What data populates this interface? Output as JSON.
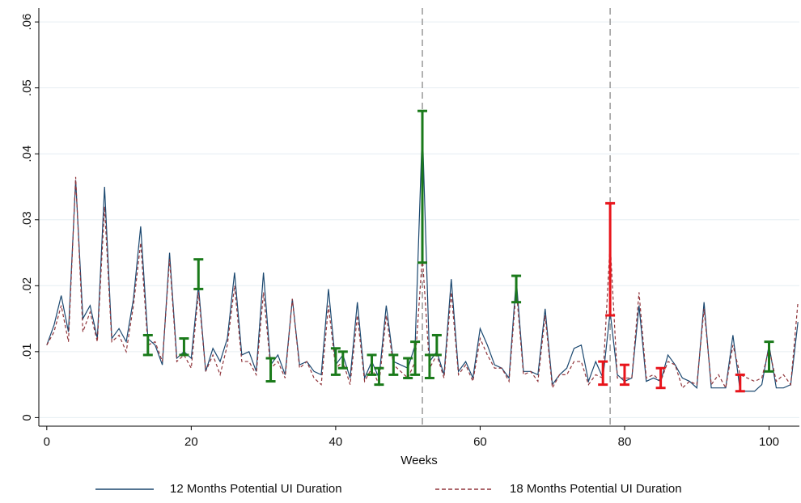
{
  "chart_data": {
    "type": "line",
    "xlabel": "Weeks",
    "x": [
      0,
      1,
      2,
      3,
      4,
      5,
      6,
      7,
      8,
      9,
      10,
      11,
      12,
      13,
      14,
      15,
      16,
      17,
      18,
      19,
      20,
      21,
      22,
      23,
      24,
      25,
      26,
      27,
      28,
      29,
      30,
      31,
      32,
      33,
      34,
      35,
      36,
      37,
      38,
      39,
      40,
      41,
      42,
      43,
      44,
      45,
      46,
      47,
      48,
      49,
      50,
      51,
      52,
      53,
      54,
      55,
      56,
      57,
      58,
      59,
      60,
      61,
      62,
      63,
      64,
      65,
      66,
      67,
      68,
      69,
      70,
      71,
      72,
      73,
      74,
      75,
      76,
      77,
      78,
      79,
      80,
      81,
      82,
      83,
      84,
      85,
      86,
      87,
      88,
      89,
      90,
      91,
      92,
      93,
      94,
      95,
      96,
      97,
      98,
      99,
      100,
      101,
      102,
      103,
      104
    ],
    "series": [
      {
        "name": "12 Months Potential UI Duration",
        "color": "#1a476f",
        "dash": false,
        "values": [
          0.011,
          0.014,
          0.0185,
          0.013,
          0.036,
          0.015,
          0.017,
          0.012,
          0.035,
          0.012,
          0.0135,
          0.0115,
          0.018,
          0.029,
          0.012,
          0.011,
          0.008,
          0.025,
          0.009,
          0.01,
          0.009,
          0.02,
          0.007,
          0.0105,
          0.0085,
          0.012,
          0.022,
          0.0095,
          0.01,
          0.007,
          0.022,
          0.008,
          0.0095,
          0.0065,
          0.018,
          0.008,
          0.0085,
          0.007,
          0.0065,
          0.0195,
          0.008,
          0.0095,
          0.006,
          0.0175,
          0.006,
          0.0085,
          0.006,
          0.017,
          0.0085,
          0.008,
          0.0075,
          0.011,
          0.044,
          0.0085,
          0.01,
          0.0065,
          0.021,
          0.007,
          0.0085,
          0.006,
          0.0135,
          0.011,
          0.008,
          0.0075,
          0.006,
          0.021,
          0.007,
          0.007,
          0.0065,
          0.0165,
          0.005,
          0.0065,
          0.0075,
          0.0105,
          0.011,
          0.0055,
          0.0085,
          0.006,
          0.016,
          0.0065,
          0.0055,
          0.006,
          0.017,
          0.0055,
          0.006,
          0.0055,
          0.0095,
          0.008,
          0.006,
          0.0055,
          0.0045,
          0.0175,
          0.0045,
          0.0045,
          0.0045,
          0.0125,
          0.004,
          0.004,
          0.004,
          0.005,
          0.011,
          0.0045,
          0.0045,
          0.005,
          0.0145
        ]
      },
      {
        "name": "18 Months Potential UI Duration",
        "color": "#90353b",
        "dash": true,
        "values": [
          0.011,
          0.013,
          0.017,
          0.0115,
          0.0365,
          0.013,
          0.016,
          0.0115,
          0.032,
          0.0115,
          0.0125,
          0.01,
          0.017,
          0.0265,
          0.011,
          0.0115,
          0.0085,
          0.024,
          0.0085,
          0.0095,
          0.0075,
          0.019,
          0.007,
          0.0095,
          0.0065,
          0.011,
          0.02,
          0.0085,
          0.0085,
          0.0065,
          0.019,
          0.0075,
          0.0085,
          0.006,
          0.018,
          0.0075,
          0.0085,
          0.006,
          0.005,
          0.017,
          0.0075,
          0.0085,
          0.005,
          0.0155,
          0.0055,
          0.0075,
          0.005,
          0.0155,
          0.008,
          0.007,
          0.006,
          0.0085,
          0.0245,
          0.0075,
          0.0095,
          0.006,
          0.019,
          0.0065,
          0.008,
          0.0055,
          0.012,
          0.0095,
          0.0075,
          0.0075,
          0.0055,
          0.0195,
          0.0065,
          0.007,
          0.0055,
          0.0155,
          0.0045,
          0.0065,
          0.0065,
          0.0085,
          0.0085,
          0.005,
          0.0065,
          0.006,
          0.0265,
          0.006,
          0.006,
          0.006,
          0.019,
          0.006,
          0.0065,
          0.0055,
          0.0085,
          0.008,
          0.0045,
          0.0055,
          0.005,
          0.0165,
          0.005,
          0.0065,
          0.0045,
          0.011,
          0.0065,
          0.006,
          0.0055,
          0.006,
          0.0105,
          0.0055,
          0.0065,
          0.005,
          0.0175
        ]
      }
    ],
    "error_bars": [
      {
        "color": "#1a7a1a",
        "x": [
          14,
          19,
          21,
          31,
          40,
          41,
          45,
          46,
          48,
          50,
          51,
          52,
          53,
          54,
          65,
          100
        ],
        "low": [
          0.0095,
          0.0095,
          0.0195,
          0.0055,
          0.0065,
          0.0075,
          0.0065,
          0.005,
          0.0065,
          0.006,
          0.0065,
          0.0235,
          0.006,
          0.0095,
          0.0175,
          0.007
        ],
        "high": [
          0.0125,
          0.012,
          0.024,
          0.009,
          0.0105,
          0.01,
          0.0095,
          0.0075,
          0.0095,
          0.009,
          0.0115,
          0.0465,
          0.0095,
          0.0125,
          0.0215,
          0.0115
        ]
      },
      {
        "color": "#e8141b",
        "x": [
          77,
          78,
          80,
          85,
          96
        ],
        "low": [
          0.005,
          0.0155,
          0.005,
          0.0045,
          0.004
        ],
        "high": [
          0.0085,
          0.0325,
          0.008,
          0.0075,
          0.0065
        ]
      }
    ],
    "vlines": [
      52,
      78
    ],
    "xlim": [
      -1.1,
      104.2
    ],
    "xticks": [
      0,
      20,
      40,
      60,
      80,
      100
    ],
    "ylim": [
      -0.0013,
      0.0621
    ],
    "yticks": [
      {
        "value": 0,
        "label": "0"
      },
      {
        "value": 0.01,
        "label": ".01"
      },
      {
        "value": 0.02,
        "label": ".02"
      },
      {
        "value": 0.03,
        "label": ".03"
      },
      {
        "value": 0.04,
        "label": ".04"
      },
      {
        "value": 0.05,
        "label": ".05"
      },
      {
        "value": 0.06,
        "label": ".06"
      }
    ],
    "grid": true
  }
}
